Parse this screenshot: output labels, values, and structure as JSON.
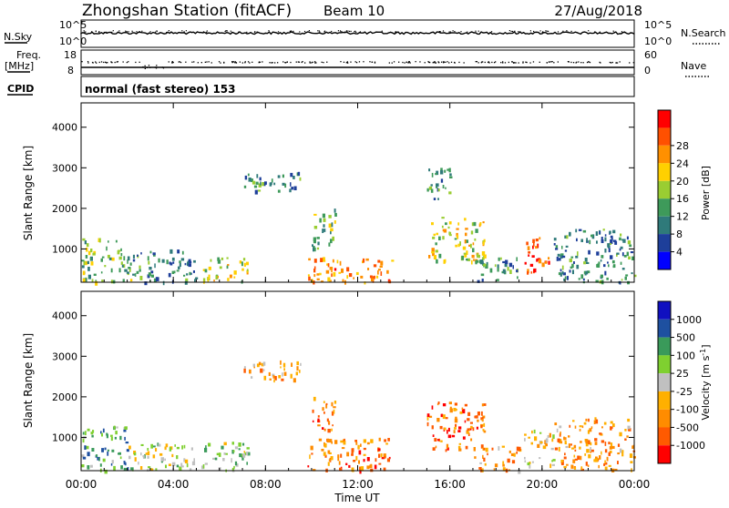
{
  "header": {
    "station_title": "Zhongshan Station (fitACF)",
    "beam_label": "Beam 10",
    "date_label": "27/Aug/2018"
  },
  "top_panels": {
    "nsky_label": "N.Sky",
    "nsky_ticks": [
      "10^5",
      "10^0"
    ],
    "nsearch_label": "N.Search",
    "nsearch_ticks": [
      "10^5",
      "10^0"
    ],
    "freq_label_line1": "Freq.",
    "freq_label_line2": "[MHz]",
    "freq_ticks": [
      "18",
      "8"
    ],
    "nave_label": "Nave",
    "nave_ticks": [
      "60",
      "0"
    ],
    "cpid_label": "CPID",
    "cpid_value": "normal (fast stereo) 153"
  },
  "colors": {
    "power_scale": [
      "#0000ff",
      "#1e3f9a",
      "#2f7a7a",
      "#3e9a5a",
      "#9acd32",
      "#ffd000",
      "#ff9000",
      "#ff5000",
      "#ff0000"
    ],
    "velocity_scale": [
      "#ff0000",
      "#ff5a00",
      "#ff8c00",
      "#ffb000",
      "#c0c0c0",
      "#7fd030",
      "#3a9a5a",
      "#1e50a0",
      "#1010c0"
    ],
    "ground_scatter": "#c0c0c0"
  },
  "chart_data": [
    {
      "type": "heatmap",
      "panel": "power",
      "ylabel": "Slant Range [km]",
      "yticks": [
        "1000",
        "2000",
        "3000",
        "4000"
      ],
      "ylim": [
        180,
        4600
      ],
      "xlim_hours": [
        0,
        24
      ],
      "colorbar_label": "Power [dB]",
      "colorbar_ticks": [
        "4",
        "8",
        "12",
        "16",
        "20",
        "24",
        "28"
      ],
      "colorbar_range": [
        0,
        30
      ],
      "regions": [
        {
          "t0": 0.0,
          "t1": 2.2,
          "r0": 200,
          "r1": 1300,
          "level": 0.45
        },
        {
          "t0": 2.2,
          "t1": 5.0,
          "r0": 200,
          "r1": 1000,
          "level": 0.3
        },
        {
          "t0": 5.2,
          "t1": 7.3,
          "r0": 200,
          "r1": 800,
          "level": 0.55
        },
        {
          "t0": 7.0,
          "t1": 9.5,
          "r0": 2400,
          "r1": 2900,
          "level": 0.3
        },
        {
          "t0": 9.8,
          "t1": 13.5,
          "r0": 200,
          "r1": 800,
          "level": 0.75
        },
        {
          "t0": 10.0,
          "t1": 11.0,
          "r0": 1000,
          "r1": 2000,
          "level": 0.4
        },
        {
          "t0": 15.0,
          "t1": 17.5,
          "r0": 700,
          "r1": 1800,
          "level": 0.55
        },
        {
          "t0": 15.0,
          "t1": 16.0,
          "r0": 2200,
          "r1": 3000,
          "level": 0.35
        },
        {
          "t0": 17.0,
          "t1": 19.0,
          "r0": 200,
          "r1": 800,
          "level": 0.35
        },
        {
          "t0": 19.2,
          "t1": 20.3,
          "r0": 400,
          "r1": 1300,
          "level": 0.85
        },
        {
          "t0": 20.5,
          "t1": 24.0,
          "r0": 200,
          "r1": 1500,
          "level": 0.3
        }
      ]
    },
    {
      "type": "heatmap",
      "panel": "velocity",
      "ylabel": "Slant Range [km]",
      "yticks": [
        "1000",
        "2000",
        "3000",
        "4000"
      ],
      "ylim": [
        180,
        4600
      ],
      "xlim_hours": [
        0,
        24
      ],
      "colorbar_label": "Velocity [m s",
      "colorbar_label_sup": "-1",
      "colorbar_label_end": "]",
      "colorbar_ticks": [
        "1000",
        "500",
        "100",
        "25",
        "-25",
        "-100",
        "-500",
        "-1000"
      ],
      "xticks": [
        "00:00",
        "04:00",
        "08:00",
        "12:00",
        "16:00",
        "20:00",
        "00:00"
      ],
      "xlabel": "Time UT",
      "regions": [
        {
          "t0": 0.0,
          "t1": 2.0,
          "r0": 200,
          "r1": 1300,
          "level": 0.7
        },
        {
          "t0": 2.0,
          "t1": 5.0,
          "r0": 200,
          "r1": 900,
          "level": 0.55
        },
        {
          "t0": 5.2,
          "t1": 7.3,
          "r0": 200,
          "r1": 900,
          "level": 0.6
        },
        {
          "t0": 7.0,
          "t1": 9.5,
          "r0": 2400,
          "r1": 2900,
          "level": 0.35
        },
        {
          "t0": 9.8,
          "t1": 13.5,
          "r0": 200,
          "r1": 1000,
          "level": 0.25
        },
        {
          "t0": 10.0,
          "t1": 11.0,
          "r0": 1200,
          "r1": 2000,
          "level": 0.25
        },
        {
          "t0": 15.0,
          "t1": 17.5,
          "r0": 700,
          "r1": 1900,
          "level": 0.2
        },
        {
          "t0": 17.0,
          "t1": 19.0,
          "r0": 200,
          "r1": 800,
          "level": 0.3
        },
        {
          "t0": 19.2,
          "t1": 20.5,
          "r0": 300,
          "r1": 1200,
          "level": 0.45
        },
        {
          "t0": 20.5,
          "t1": 24.0,
          "r0": 200,
          "r1": 1500,
          "level": 0.3
        }
      ]
    }
  ]
}
